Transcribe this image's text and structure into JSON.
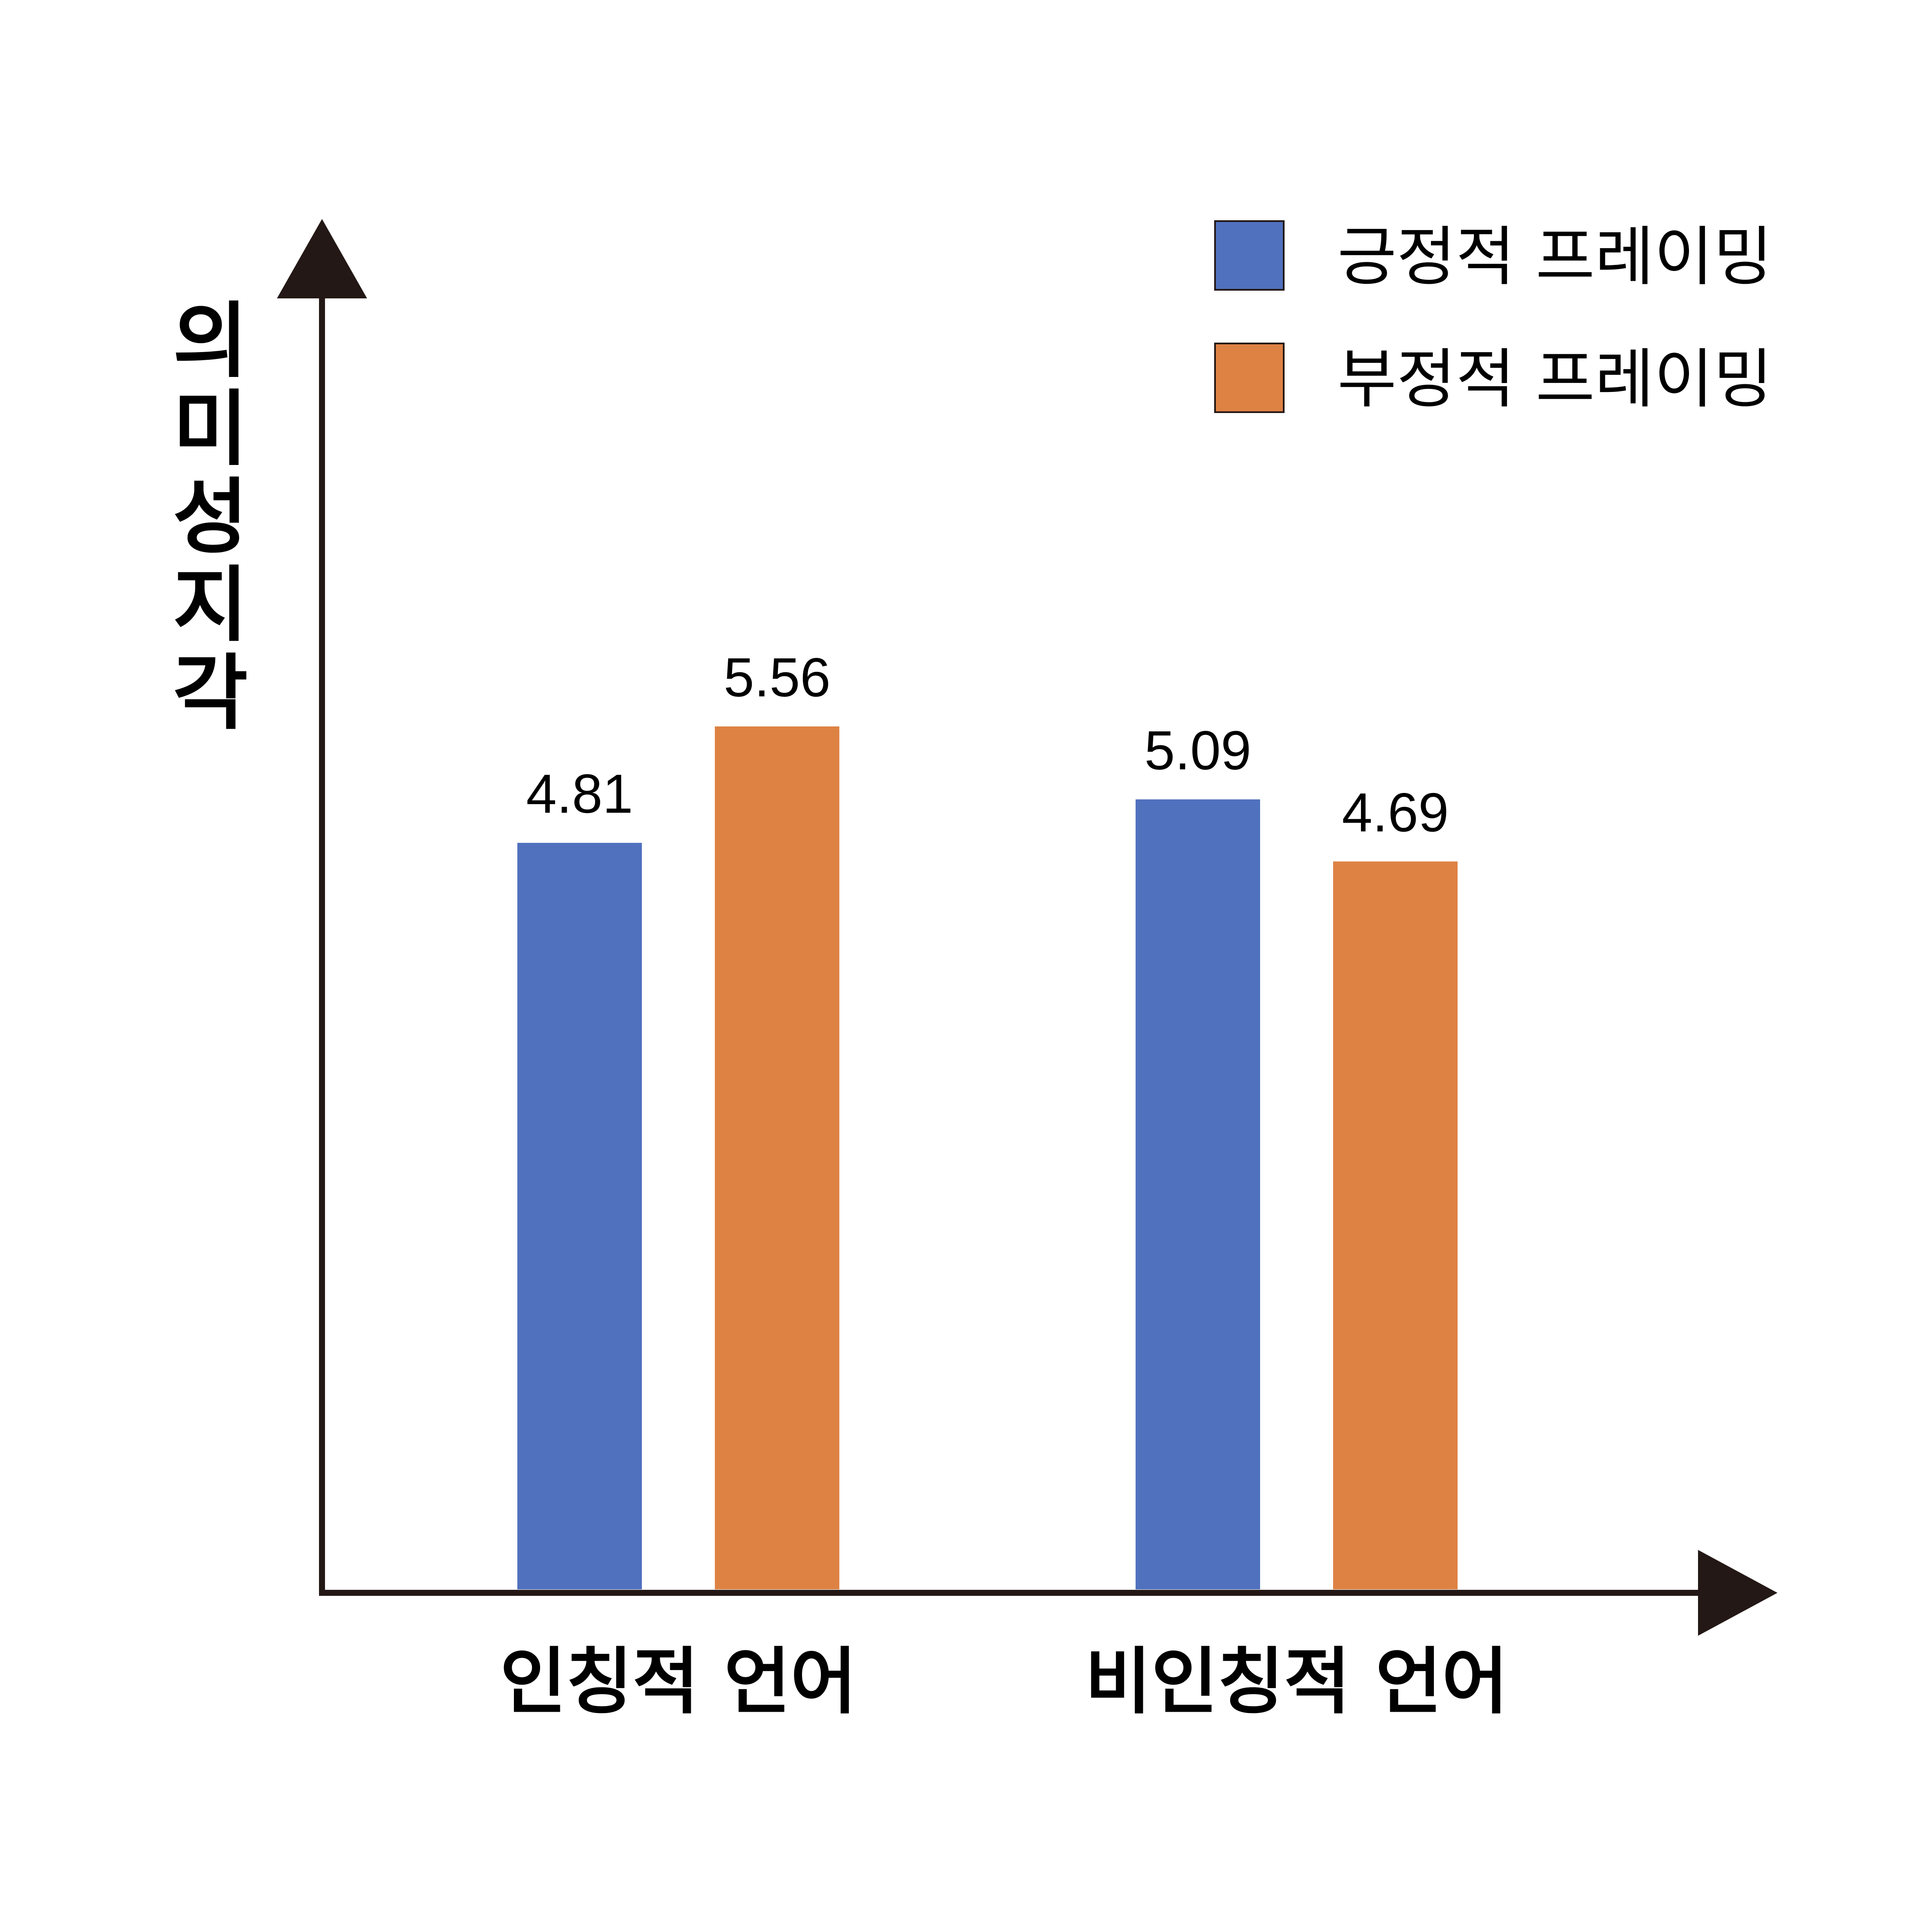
{
  "chart_data": {
    "type": "bar",
    "categories": [
      "인칭적 언어",
      "비인칭적 언어"
    ],
    "series": [
      {
        "name": "긍정적 프레이밍",
        "color": "#5071be",
        "values": [
          4.81,
          5.09
        ]
      },
      {
        "name": "부정적 프레이밍",
        "color": "#de8244",
        "values": [
          5.56,
          4.69
        ]
      }
    ],
    "value_labels": [
      [
        "4.81",
        "5.09"
      ],
      [
        "5.56",
        "4.69"
      ]
    ],
    "title": "",
    "xlabel": "",
    "ylabel": "의미성 지각",
    "ylim": [
      0,
      7.12
    ],
    "grid": false,
    "legend_position": "top-right",
    "axis_color": "#231815"
  }
}
